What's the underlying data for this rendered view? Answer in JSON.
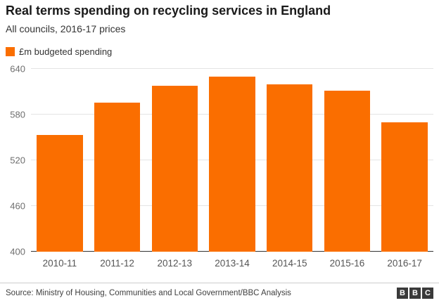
{
  "header": {
    "title": "Real terms spending on recycling services in England",
    "subtitle": "All councils, 2016-17 prices"
  },
  "legend": {
    "label": "£m budgeted spending",
    "swatch_color": "#fa6e00"
  },
  "chart_data": {
    "type": "bar",
    "title": "Real terms spending on recycling services in England",
    "subtitle": "All councils, 2016-17 prices",
    "categories": [
      "2010-11",
      "2011-12",
      "2012-13",
      "2013-14",
      "2014-15",
      "2015-16",
      "2016-17"
    ],
    "values": [
      553,
      596,
      618,
      630,
      620,
      611,
      570
    ],
    "series_name": "£m budgeted spending",
    "xlabel": "",
    "ylabel": "",
    "ylim": [
      400,
      640
    ],
    "yticks": [
      400,
      460,
      520,
      580,
      640
    ],
    "bar_color": "#fa6e00",
    "grid": true,
    "legend_position": "top-left"
  },
  "footer": {
    "source": "Source: Ministry of Housing, Communities and Local Government/BBC Analysis",
    "logo_letters": [
      "B",
      "B",
      "C"
    ]
  }
}
